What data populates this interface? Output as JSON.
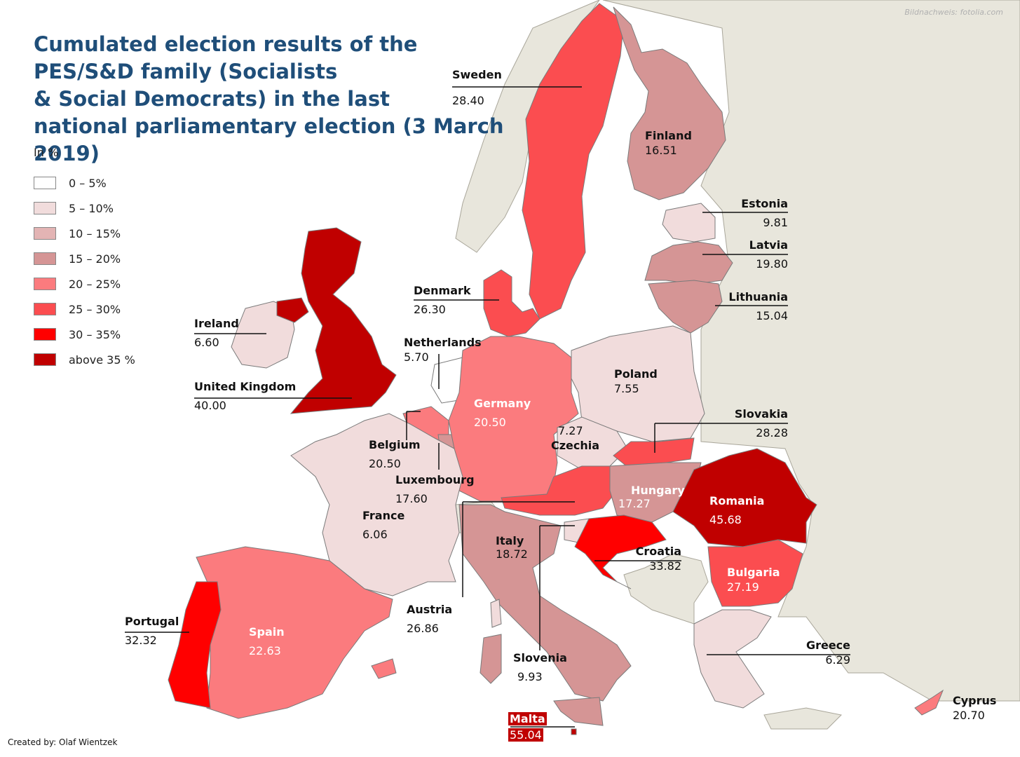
{
  "title": "Cumulated election results of the\nPES/S&D family (Socialists\n& Social Democrats) in the last\nnational parliamentary election (3 March 2019)",
  "image_credit": "Bildnachweis: fotolia.com",
  "author_credit": "Created by: Olaf Wientzek",
  "legend": {
    "unit": "In %",
    "items": [
      {
        "label": "0 – 5%",
        "color": "#ffffff"
      },
      {
        "label": "5 – 10%",
        "color": "#f1dcdc"
      },
      {
        "label": "10 – 15%",
        "color": "#e3b4b4"
      },
      {
        "label": "15 – 20%",
        "color": "#d59595"
      },
      {
        "label": "20 – 25%",
        "color": "#fb7b7e"
      },
      {
        "label": "25 – 30%",
        "color": "#fb4d50"
      },
      {
        "label": "30 – 35%",
        "color": "#ff0000"
      },
      {
        "label": "above 35 %",
        "color": "#c00000"
      }
    ]
  },
  "colors": {
    "background_land": "#e8e6dc",
    "sea": "#ffffff",
    "border": "#7a7a7a",
    "title": "#1f4e79"
  },
  "countries": {
    "sweden": {
      "name": "Sweden",
      "value": "28.40"
    },
    "finland": {
      "name": "Finland",
      "value": "16.51"
    },
    "estonia": {
      "name": "Estonia",
      "value": "9.81"
    },
    "latvia": {
      "name": "Latvia",
      "value": "19.80"
    },
    "lithuania": {
      "name": "Lithuania",
      "value": "15.04"
    },
    "denmark": {
      "name": "Denmark",
      "value": "26.30"
    },
    "ireland": {
      "name": "Ireland",
      "value": "6.60"
    },
    "uk": {
      "name": "United Kingdom",
      "value": "40.00"
    },
    "netherlands": {
      "name": "Netherlands",
      "value": "5.70"
    },
    "belgium": {
      "name": "Belgium",
      "value": "20.50"
    },
    "luxembourg": {
      "name": "Luxembourg",
      "value": "17.60"
    },
    "germany": {
      "name": "Germany",
      "value": "20.50"
    },
    "poland": {
      "name": "Poland",
      "value": "7.55"
    },
    "czechia": {
      "name": "Czechia",
      "value": "7.27"
    },
    "slovakia": {
      "name": "Slovakia",
      "value": "28.28"
    },
    "hungary": {
      "name": "Hungary",
      "value": "17.27"
    },
    "romania": {
      "name": "Romania",
      "value": "45.68"
    },
    "france": {
      "name": "France",
      "value": "6.06"
    },
    "italy": {
      "name": "Italy",
      "value": "18.72"
    },
    "croatia": {
      "name": "Croatia",
      "value": "33.82"
    },
    "bulgaria": {
      "name": "Bulgaria",
      "value": "27.19"
    },
    "austria": {
      "name": "Austria",
      "value": "26.86"
    },
    "slovenia": {
      "name": "Slovenia",
      "value": "9.93"
    },
    "portugal": {
      "name": "Portugal",
      "value": "32.32"
    },
    "spain": {
      "name": "Spain",
      "value": "22.63"
    },
    "greece": {
      "name": "Greece",
      "value": "6.29"
    },
    "cyprus": {
      "name": "Cyprus",
      "value": "20.70"
    },
    "malta": {
      "name": "Malta",
      "value": "55.04"
    }
  }
}
